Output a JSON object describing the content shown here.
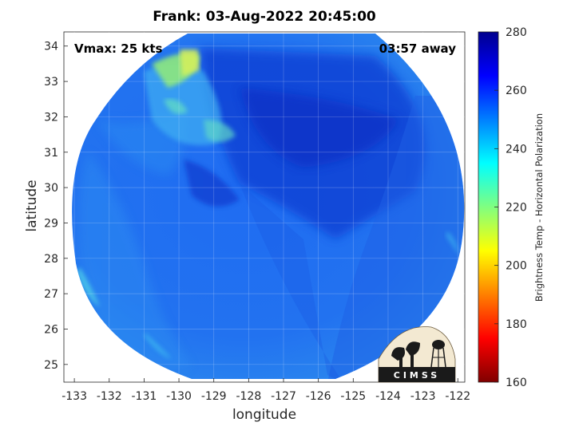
{
  "header": {
    "title": "Frank: 03-Aug-2022 20:45:00",
    "vmax": "Vmax: 25 kts",
    "away": "03:57 away"
  },
  "logo": {
    "text": "CIMSS"
  },
  "chart_data": {
    "type": "heatmap",
    "title": "Frank: 03-Aug-2022 20:45:00",
    "xlabel": "longitude",
    "ylabel": "latitude",
    "xlim": [
      -133.3,
      -121.8
    ],
    "ylim": [
      24.5,
      34.4
    ],
    "xticks": [
      -133,
      -132,
      -131,
      -130,
      -129,
      -128,
      -127,
      -126,
      -125,
      -124,
      -123,
      -122
    ],
    "yticks": [
      25,
      26,
      27,
      28,
      29,
      30,
      31,
      32,
      33,
      34
    ],
    "grid": true,
    "annotations": [
      "Vmax: 25 kts",
      "03:57 away"
    ],
    "colorbar": {
      "label": "Brightness Temp - Horizontal Polarization",
      "range": [
        160,
        280
      ],
      "ticks": [
        160,
        180,
        200,
        220,
        240,
        260,
        280
      ],
      "colormap": "jet"
    },
    "colors": {
      "background_field": "#1e6ef0",
      "cold_band": "#0d3cd0",
      "warm_patch": "#a8f06a",
      "edge_cyan": "#33c8f0"
    }
  }
}
